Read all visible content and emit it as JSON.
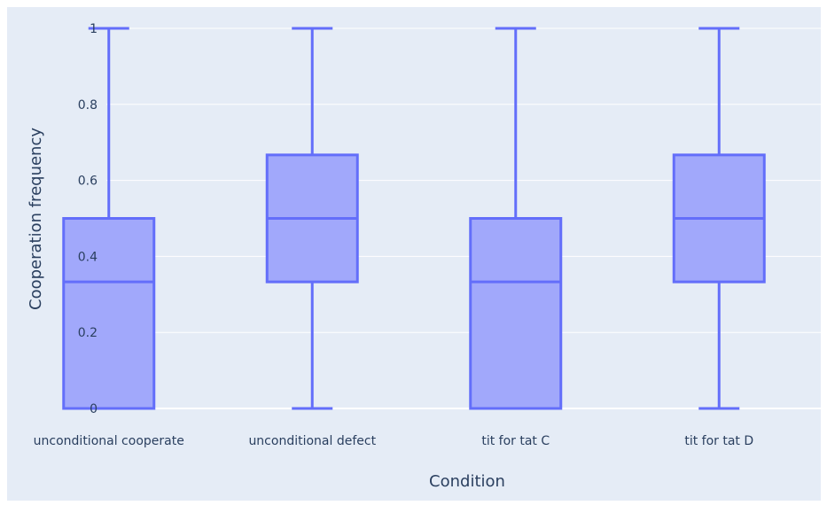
{
  "chart_data": {
    "type": "box",
    "xlabel": "Condition",
    "ylabel": "Cooperation frequency",
    "categories": [
      "unconditional cooperate",
      "unconditional defect",
      "tit for tat C",
      "tit for tat D"
    ],
    "ylim": [
      0,
      1
    ],
    "yticks": [
      0,
      0.2,
      0.4,
      0.6,
      0.8,
      1
    ],
    "ytick_labels": [
      "0",
      "0.2",
      "0.4",
      "0.6",
      "0.8",
      "1"
    ],
    "boxes": [
      {
        "category": "unconditional cooperate",
        "min": 0,
        "q1": 0,
        "median": 0.333,
        "q3": 0.5,
        "max": 1
      },
      {
        "category": "unconditional defect",
        "min": 0,
        "q1": 0.333,
        "median": 0.5,
        "q3": 0.667,
        "max": 1
      },
      {
        "category": "tit for tat C",
        "min": 0,
        "q1": 0,
        "median": 0.333,
        "q3": 0.5,
        "max": 1
      },
      {
        "category": "tit for tat D",
        "min": 0,
        "q1": 0.333,
        "median": 0.5,
        "q3": 0.667,
        "max": 1
      }
    ],
    "grid": true,
    "colors": {
      "box_line": "#636efa",
      "box_fill": "#a1a8fb",
      "plot_bg": "#e5ecf6",
      "grid": "#ffffff",
      "text": "#2a3f5f"
    }
  }
}
